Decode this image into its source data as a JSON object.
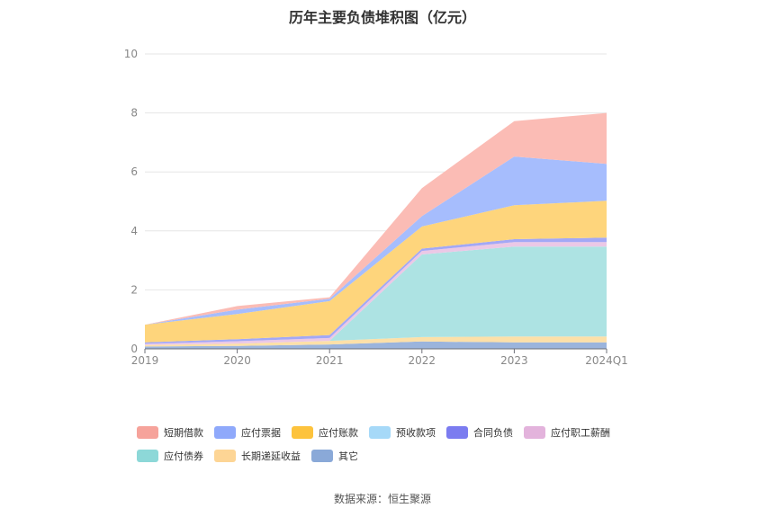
{
  "chart_data": {
    "type": "area",
    "stacked": true,
    "title": "历年主要负债堆积图（亿元）",
    "categories": [
      "2019",
      "2020",
      "2021",
      "2022",
      "2023",
      "2024Q1"
    ],
    "ylim": [
      0,
      10
    ],
    "yticks": [
      0,
      2,
      4,
      6,
      8,
      10
    ],
    "grid": true,
    "legend_position": "bottom",
    "series": [
      {
        "name": "其它",
        "color": "#9bb4dc",
        "values": [
          0.08,
          0.1,
          0.15,
          0.25,
          0.22,
          0.22
        ]
      },
      {
        "name": "长期递延收益",
        "color": "#fde0a8",
        "values": [
          0.05,
          0.08,
          0.12,
          0.15,
          0.2,
          0.2
        ]
      },
      {
        "name": "应付债券",
        "color": "#ade3e3",
        "values": [
          0.0,
          0.0,
          0.0,
          2.8,
          3.05,
          3.05
        ]
      },
      {
        "name": "应付职工薪酬",
        "color": "#ebc8e6",
        "values": [
          0.04,
          0.08,
          0.1,
          0.12,
          0.15,
          0.15
        ]
      },
      {
        "name": "合同负债",
        "color": "#a3a8f5",
        "values": [
          0.05,
          0.07,
          0.1,
          0.08,
          0.1,
          0.15
        ]
      },
      {
        "name": "预收款项",
        "color": "#c4e6fb",
        "values": [
          0.0,
          0.0,
          0.0,
          0.0,
          0.0,
          0.0
        ]
      },
      {
        "name": "应付账款",
        "color": "#fed57c",
        "values": [
          0.6,
          0.85,
          1.15,
          0.75,
          1.15,
          1.25
        ]
      },
      {
        "name": "应付票据",
        "color": "#a6bdfd",
        "values": [
          0.0,
          0.15,
          0.08,
          0.35,
          1.65,
          1.25
        ]
      },
      {
        "name": "短期借款",
        "color": "#fbbcb5",
        "values": [
          0.0,
          0.12,
          0.05,
          0.95,
          1.2,
          1.73
        ]
      }
    ]
  },
  "legend": {
    "items": [
      {
        "label": "短期借款",
        "color": "#f6a39b"
      },
      {
        "label": "应付票据",
        "color": "#8fa9fb"
      },
      {
        "label": "应付账款",
        "color": "#fdc33d"
      },
      {
        "label": "预收款项",
        "color": "#a6d9f8"
      },
      {
        "label": "合同负债",
        "color": "#7b7cf0"
      },
      {
        "label": "应付职工薪酬",
        "color": "#e3b3dc"
      },
      {
        "label": "应付债券",
        "color": "#8dd8d8"
      },
      {
        "label": "长期递延收益",
        "color": "#fdd595"
      },
      {
        "label": "其它",
        "color": "#8aa9d8"
      }
    ]
  },
  "source_note": "数据来源：恒生聚源"
}
